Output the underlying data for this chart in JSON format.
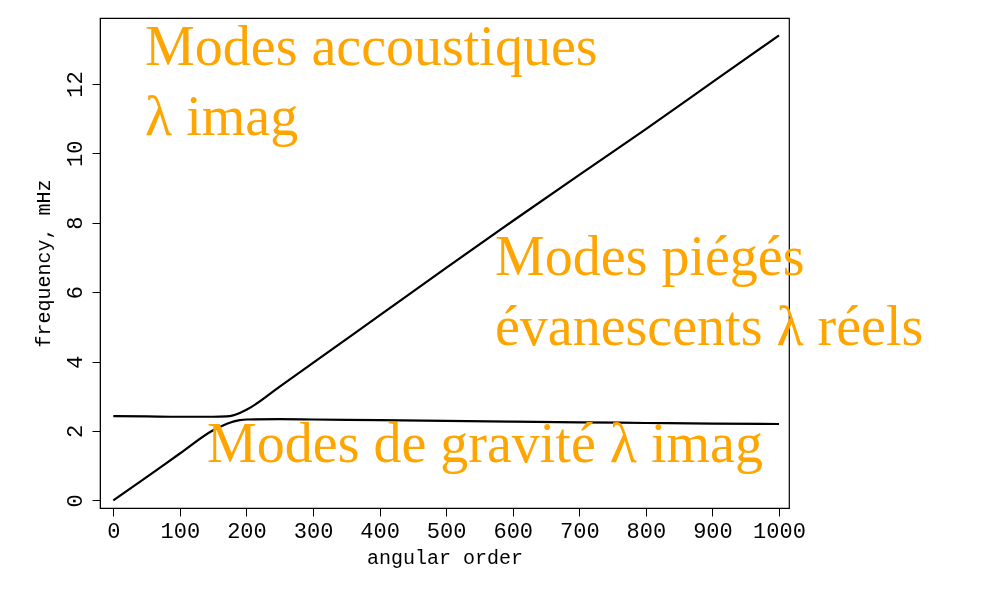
{
  "chart_data": {
    "type": "line",
    "xlabel": "angular order",
    "ylabel": "frequency, mHz",
    "xlim": [
      -20,
      1015
    ],
    "ylim": [
      -0.22,
      13.9
    ],
    "xticks": [
      0,
      100,
      200,
      300,
      400,
      500,
      600,
      700,
      800,
      900,
      1000
    ],
    "yticks": [
      0,
      2,
      4,
      6,
      8,
      10,
      12
    ],
    "x": [
      0,
      50,
      100,
      150,
      170,
      180,
      190,
      200,
      250,
      300,
      400,
      500,
      600,
      700,
      800,
      900,
      1000
    ],
    "series": [
      {
        "color": "#000000",
        "values": [
          2.43,
          2.42,
          2.41,
          2.41,
          2.42,
          2.45,
          2.52,
          2.61,
          3.28,
          3.96,
          5.33,
          6.7,
          8.05,
          9.38,
          10.7,
          12.05,
          13.4
        ]
      },
      {
        "color": "#000000",
        "values": [
          0,
          0.67,
          1.35,
          2.02,
          2.2,
          2.27,
          2.31,
          2.33,
          2.34,
          2.33,
          2.31,
          2.29,
          2.27,
          2.25,
          2.23,
          2.21,
          2.2
        ]
      }
    ],
    "annotations": [
      "Modes accoustiques\nλ imag",
      "Modes piégés\névanescents λ réels",
      "Modes de gravité λ imag"
    ],
    "grid": false,
    "marker": "none",
    "line_style": "solid"
  }
}
